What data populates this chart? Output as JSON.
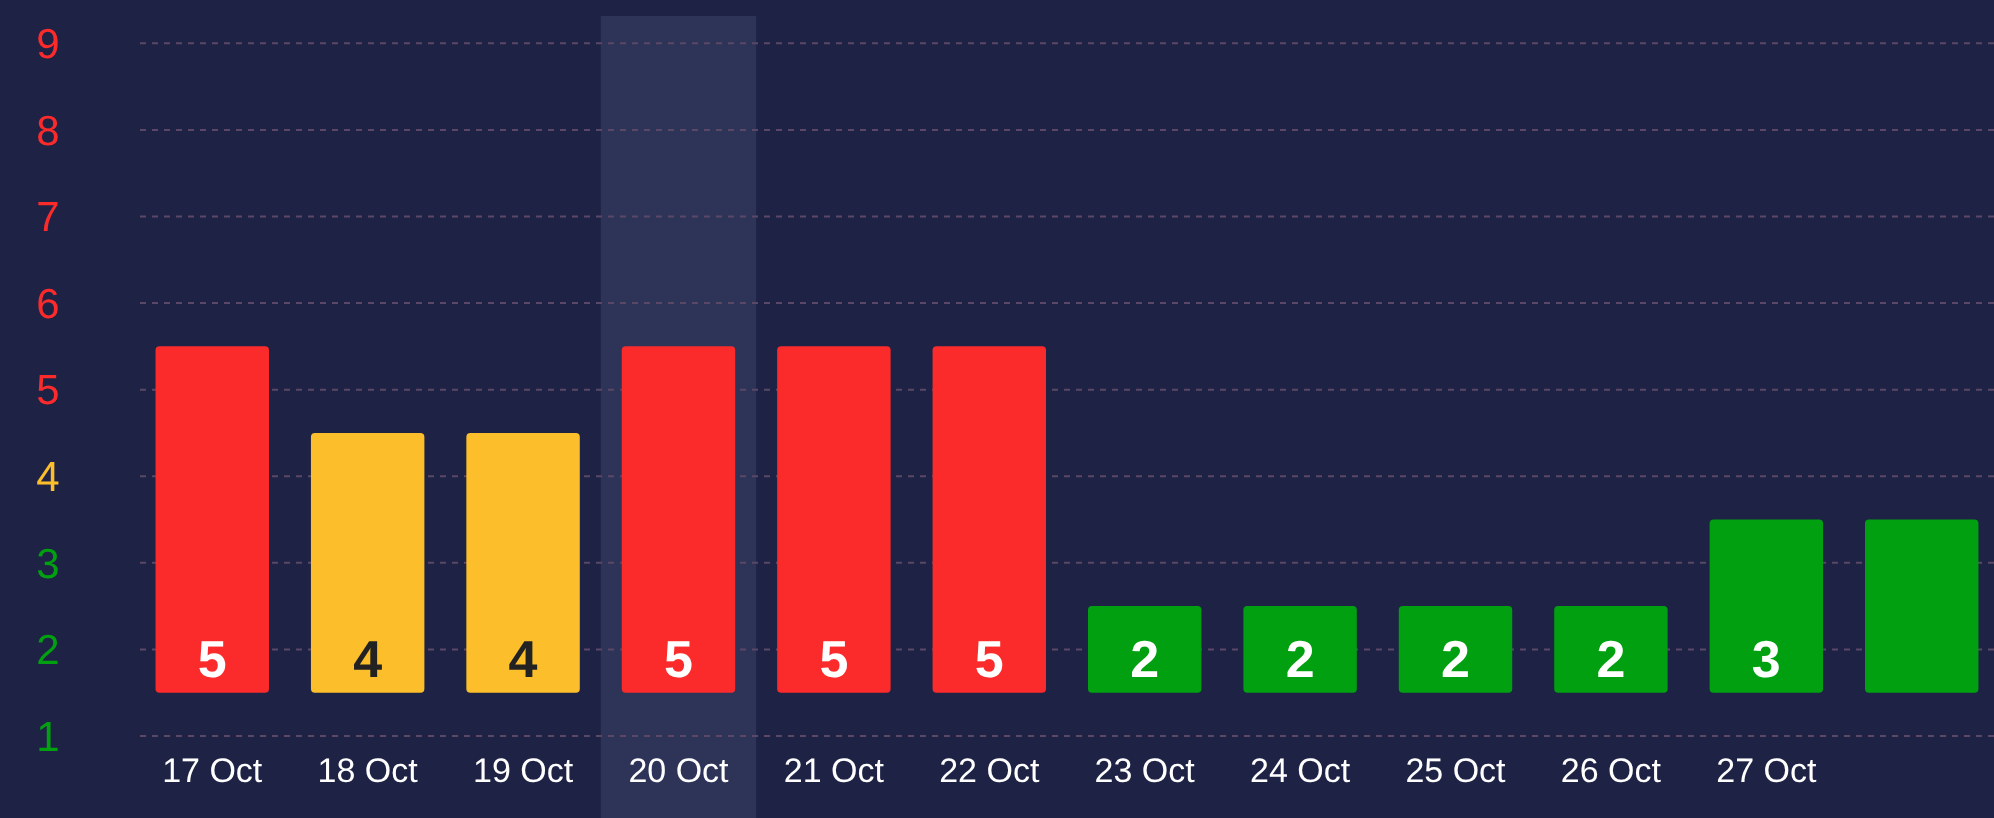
{
  "chart_data": {
    "type": "bar",
    "categories": [
      "17 Oct",
      "18 Oct",
      "19 Oct",
      "20 Oct",
      "21 Oct",
      "22 Oct",
      "23 Oct",
      "24 Oct",
      "25 Oct",
      "26 Oct",
      "27 Oct",
      null
    ],
    "values": [
      4,
      3,
      3,
      4,
      4,
      4,
      1,
      1,
      1,
      1,
      2,
      2
    ],
    "base": [
      1.5,
      1.5,
      1.5,
      1.5,
      1.5,
      1.5,
      1.5,
      1.5,
      1.5,
      1.5,
      1.5,
      1.5
    ],
    "value_labels": [
      "5",
      "4",
      "4",
      "5",
      "5",
      "5",
      "2",
      "2",
      "2",
      "2",
      "3",
      null
    ],
    "colors": [
      "#fc2b2b",
      "#fcbf2b",
      "#fcbf2b",
      "#fc2b2b",
      "#fc2b2b",
      "#fc2b2b",
      "#00a010",
      "#00a010",
      "#00a010",
      "#00a010",
      "#00a010",
      "#00a010"
    ],
    "ylim": [
      1,
      9.5
    ],
    "yticks": [
      1,
      2,
      3,
      4,
      5,
      6,
      7,
      8,
      9
    ],
    "grid": "y",
    "bands": [
      {
        "axis": "x",
        "from": "20 Oct",
        "to": "20 Oct",
        "color": "#2e3358"
      }
    ]
  }
}
